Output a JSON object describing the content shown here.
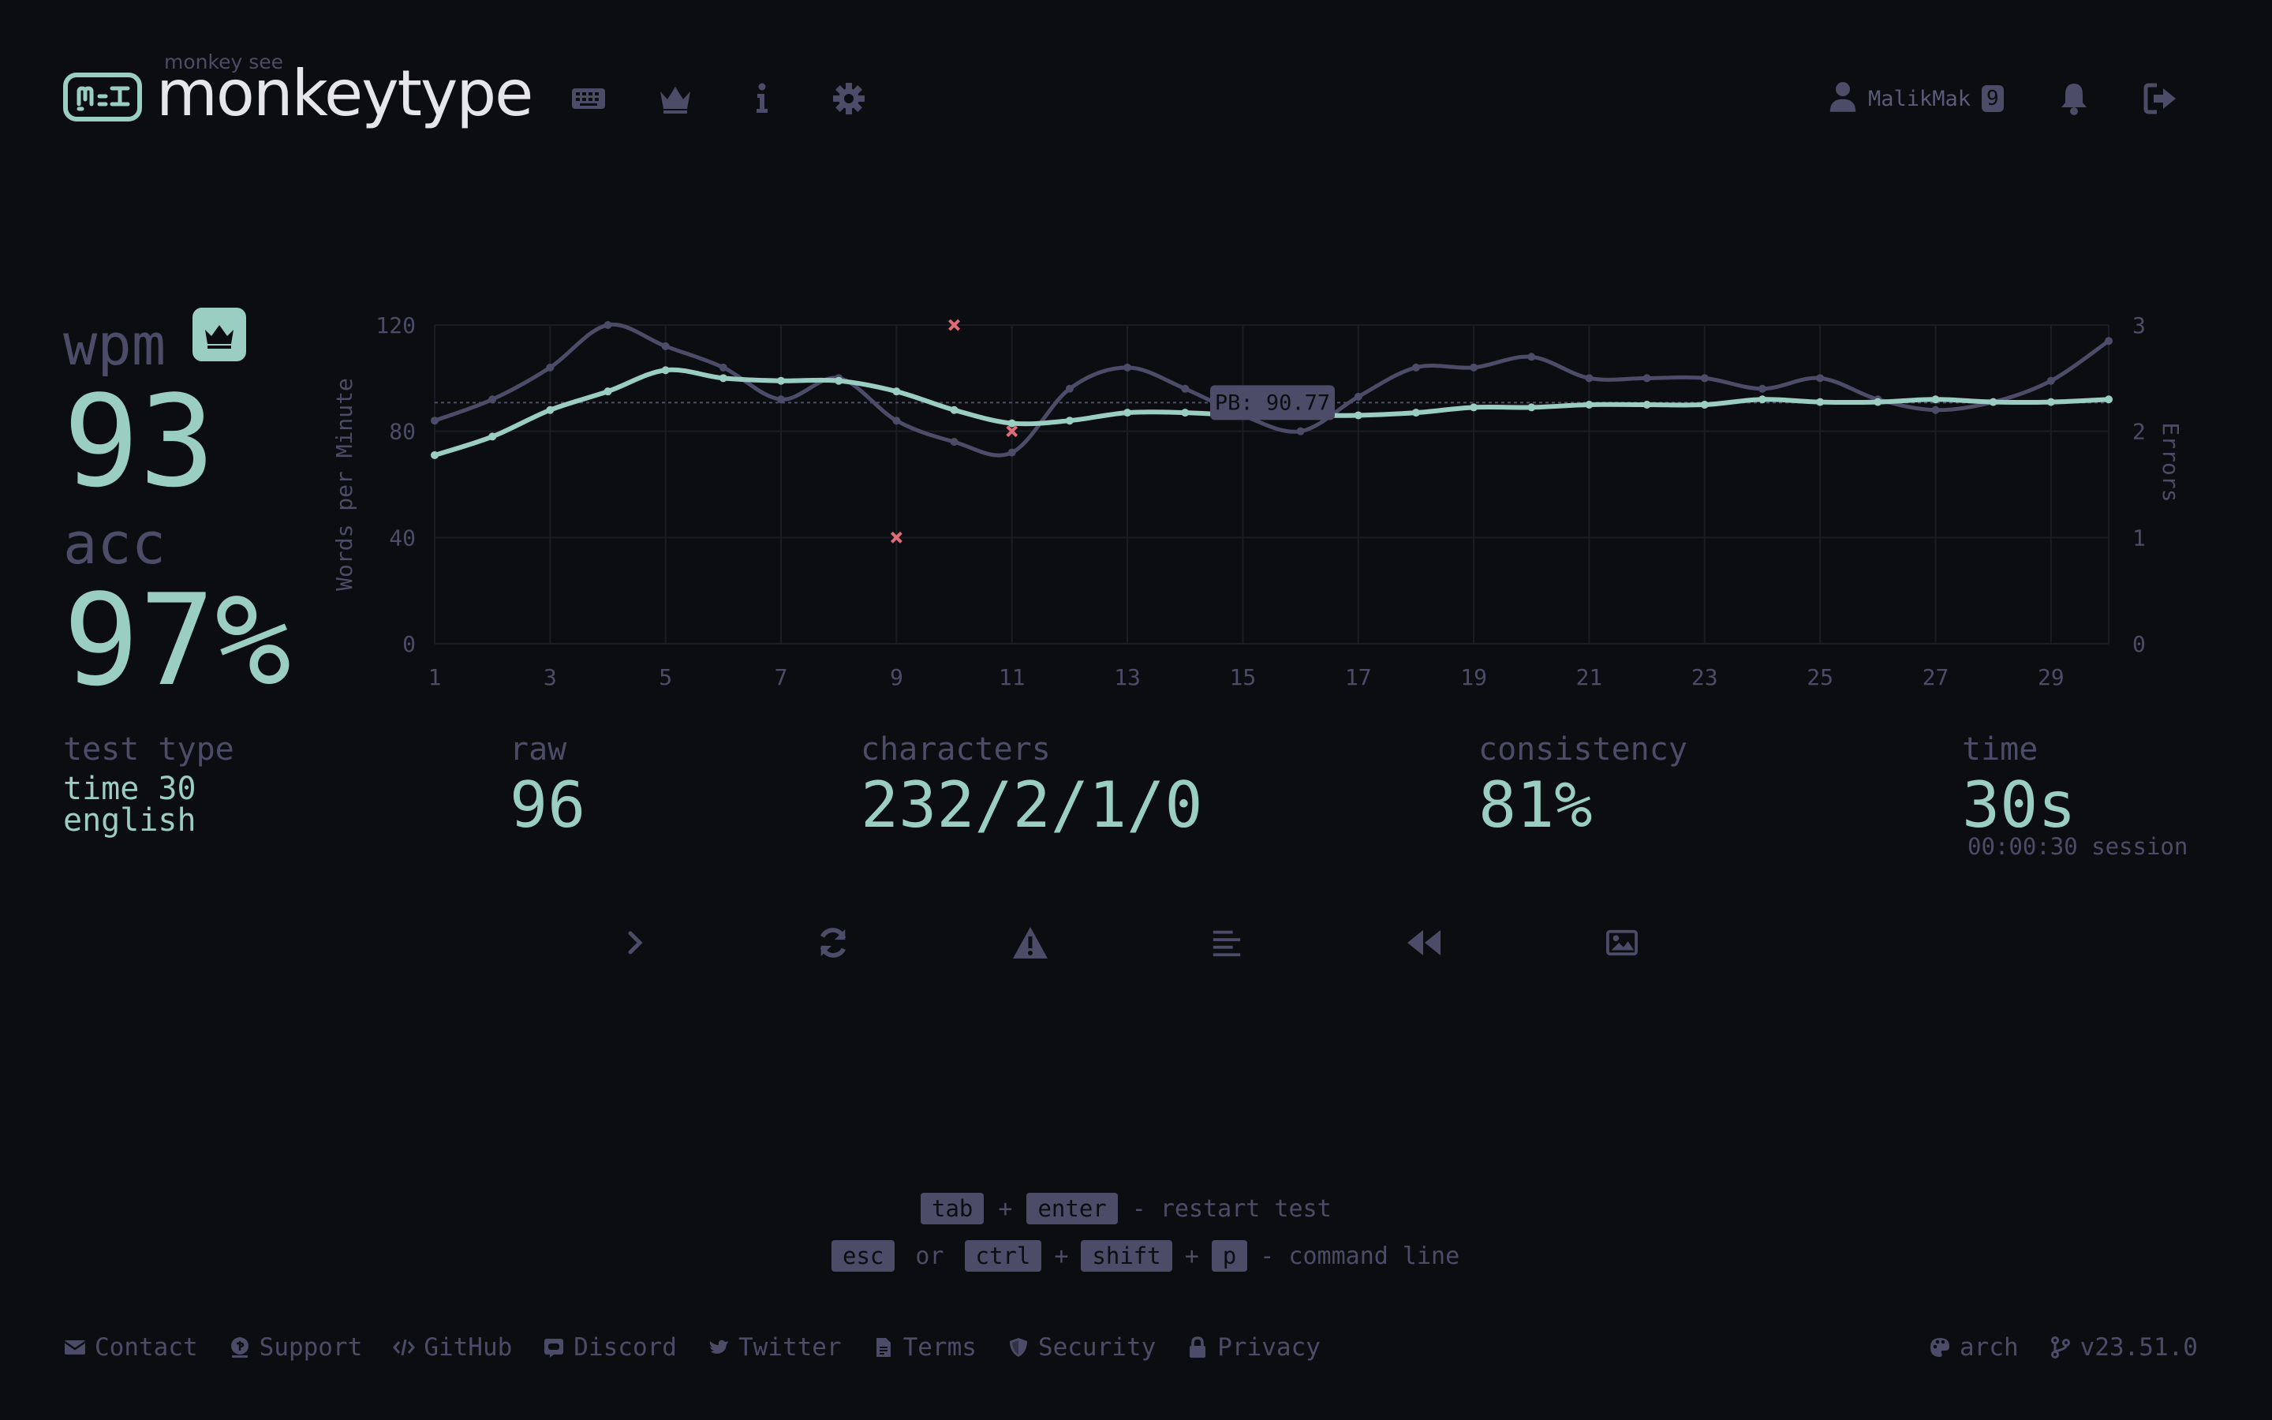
{
  "header": {
    "logo_top": "monkey see",
    "logo_name": "monkeytype",
    "username": "MalikMak",
    "level": "9"
  },
  "stats": {
    "wpm_label": "wpm",
    "wpm": "93",
    "acc_label": "acc",
    "acc": "97%",
    "test_type_label": "test type",
    "test_type_mode": "time 30",
    "test_type_language": "english",
    "raw_label": "raw",
    "raw": "96",
    "characters_label": "characters",
    "characters": "232/2/1/0",
    "consistency_label": "consistency",
    "consistency": "81%",
    "time_label": "time",
    "time": "30s",
    "session": "00:00:30 session"
  },
  "chart_data": {
    "type": "line",
    "x": [
      1,
      2,
      3,
      4,
      5,
      6,
      7,
      8,
      9,
      10,
      11,
      12,
      13,
      14,
      15,
      16,
      17,
      18,
      19,
      20,
      21,
      22,
      23,
      24,
      25,
      26,
      27,
      28,
      29,
      30
    ],
    "x_ticks": [
      1,
      3,
      5,
      7,
      9,
      11,
      13,
      15,
      17,
      19,
      21,
      23,
      25,
      27,
      29
    ],
    "y_ticks": [
      0,
      40,
      80,
      120
    ],
    "y2_ticks": [
      0,
      1,
      2,
      3
    ],
    "ylabel": "Words per Minute",
    "y2label": "Errors",
    "ylim": [
      0,
      120
    ],
    "y2lim": [
      0,
      3
    ],
    "series": [
      {
        "color": "#9bcec3",
        "values": [
          71,
          78,
          88,
          95,
          103,
          100,
          99,
          99,
          95,
          88,
          83,
          84,
          87,
          87,
          86,
          86,
          86,
          87,
          89,
          89,
          90,
          90,
          90,
          92,
          91,
          91,
          92,
          91,
          91,
          92
        ]
      },
      {
        "color": "#4d4c68",
        "values": [
          84,
          92,
          104,
          120,
          112,
          104,
          92,
          100,
          84,
          76,
          72,
          96,
          104,
          96,
          86,
          80,
          93,
          104,
          104,
          108,
          100,
          100,
          100,
          96,
          100,
          92,
          88,
          91,
          99,
          114
        ]
      }
    ],
    "errors": [
      {
        "x": 9,
        "value": 1
      },
      {
        "x": 10,
        "value": 3
      },
      {
        "x": 11,
        "value": 2
      }
    ],
    "pb": {
      "label": "PB: 90.77",
      "value": 90.77
    },
    "grid": true
  },
  "hints": {
    "tab": "tab",
    "plus": "+",
    "enter": "enter",
    "restart": "- restart test",
    "esc": "esc",
    "or": "or",
    "ctrl": "ctrl",
    "shift": "shift",
    "p": "p",
    "command": "- command line"
  },
  "footer": {
    "contact": "Contact",
    "support": "Support",
    "github": "GitHub",
    "discord": "Discord",
    "twitter": "Twitter",
    "terms": "Terms",
    "security": "Security",
    "privacy": "Privacy",
    "theme": "arch",
    "version": "v23.51.0"
  },
  "colors": {
    "background": "#0c0d11",
    "main": "#9bcec3",
    "sub": "#4d4c68",
    "error": "#e06c75",
    "text": "#e6e6ea"
  }
}
